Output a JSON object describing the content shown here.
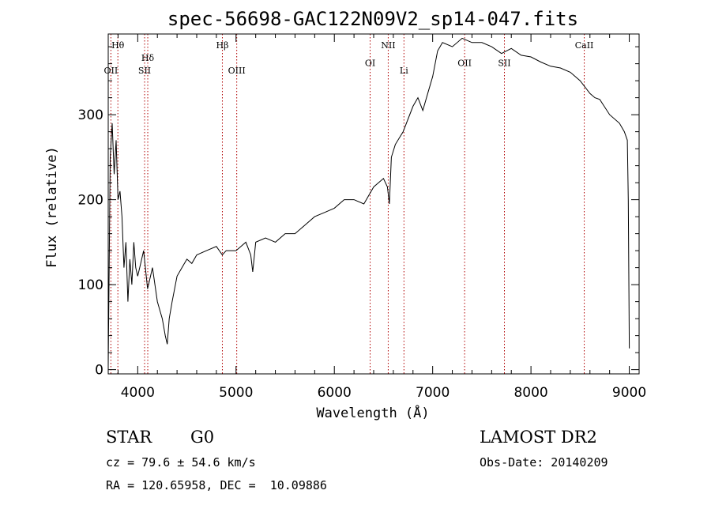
{
  "chart_data": {
    "type": "line",
    "title": "spec-56698-GAC122N09V2_sp14-047.fits",
    "xlabel": "Wavelength (Å)",
    "ylabel": "Flux (relative)",
    "xlim": [
      3700,
      9100
    ],
    "ylim": [
      -5,
      395
    ],
    "xticks": [
      4000,
      5000,
      6000,
      7000,
      8000,
      9000
    ],
    "yticks": [
      0,
      100,
      200,
      300
    ],
    "grid": false,
    "series": [
      {
        "x": [
          3700,
          3720,
          3740,
          3760,
          3780,
          3800,
          3820,
          3840,
          3860,
          3880,
          3900,
          3920,
          3940,
          3960,
          3980,
          4000,
          4030,
          4060,
          4100,
          4150,
          4200,
          4250,
          4280,
          4300,
          4320,
          4350,
          4400,
          4450,
          4500,
          4550,
          4600,
          4700,
          4800,
          4860,
          4900,
          5000,
          5100,
          5150,
          5170,
          5200,
          5300,
          5400,
          5500,
          5600,
          5700,
          5800,
          5900,
          6000,
          6100,
          6200,
          6300,
          6400,
          6500,
          6540,
          6560,
          6580,
          6620,
          6700,
          6800,
          6850,
          6900,
          6950,
          7000,
          7050,
          7100,
          7200,
          7300,
          7400,
          7500,
          7600,
          7700,
          7800,
          7900,
          8000,
          8100,
          8200,
          8300,
          8400,
          8500,
          8600,
          8650,
          8700,
          8800,
          8900,
          8950,
          8980,
          8990,
          9000
        ],
        "values": [
          5,
          250,
          290,
          230,
          270,
          200,
          210,
          180,
          120,
          150,
          80,
          130,
          100,
          150,
          120,
          110,
          125,
          140,
          95,
          120,
          80,
          60,
          40,
          30,
          60,
          80,
          110,
          120,
          130,
          125,
          135,
          140,
          145,
          135,
          140,
          140,
          150,
          135,
          115,
          150,
          155,
          150,
          160,
          160,
          170,
          180,
          185,
          190,
          200,
          200,
          195,
          215,
          225,
          215,
          195,
          250,
          265,
          280,
          310,
          320,
          305,
          325,
          345,
          375,
          385,
          380,
          390,
          385,
          385,
          380,
          372,
          378,
          370,
          368,
          362,
          357,
          355,
          350,
          340,
          325,
          320,
          318,
          300,
          290,
          280,
          270,
          200,
          25
        ],
        "color": "#000000"
      }
    ],
    "line_markers": [
      {
        "wavelength": 3798,
        "label": "Hθ",
        "row": 0
      },
      {
        "wavelength": 3727,
        "label": "OII",
        "row": 1
      },
      {
        "wavelength": 4102,
        "label": "Hδ",
        "row": 0.5
      },
      {
        "wavelength": 4070,
        "label": "SII",
        "row": 1
      },
      {
        "wavelength": 4861,
        "label": "Hβ",
        "row": 0
      },
      {
        "wavelength": 5007,
        "label": "OIII",
        "row": 1
      },
      {
        "wavelength": 6364,
        "label": "OI",
        "row": 0.7
      },
      {
        "wavelength": 6548,
        "label": "NII",
        "row": 0
      },
      {
        "wavelength": 6708,
        "label": "Li",
        "row": 1
      },
      {
        "wavelength": 7325,
        "label": "OII",
        "row": 0.7
      },
      {
        "wavelength": 7730,
        "label": "SII",
        "row": 0.7
      },
      {
        "wavelength": 8542,
        "label": "CaII",
        "row": 0
      }
    ]
  },
  "info": {
    "object_class": "STAR",
    "subclass": "G0",
    "survey": "LAMOST DR2",
    "cz": "cz = 79.6 ± 54.6 km/s",
    "obs_date": "Obs-Date: 20140209",
    "coords": "RA = 120.65958, DEC =  10.09886"
  }
}
